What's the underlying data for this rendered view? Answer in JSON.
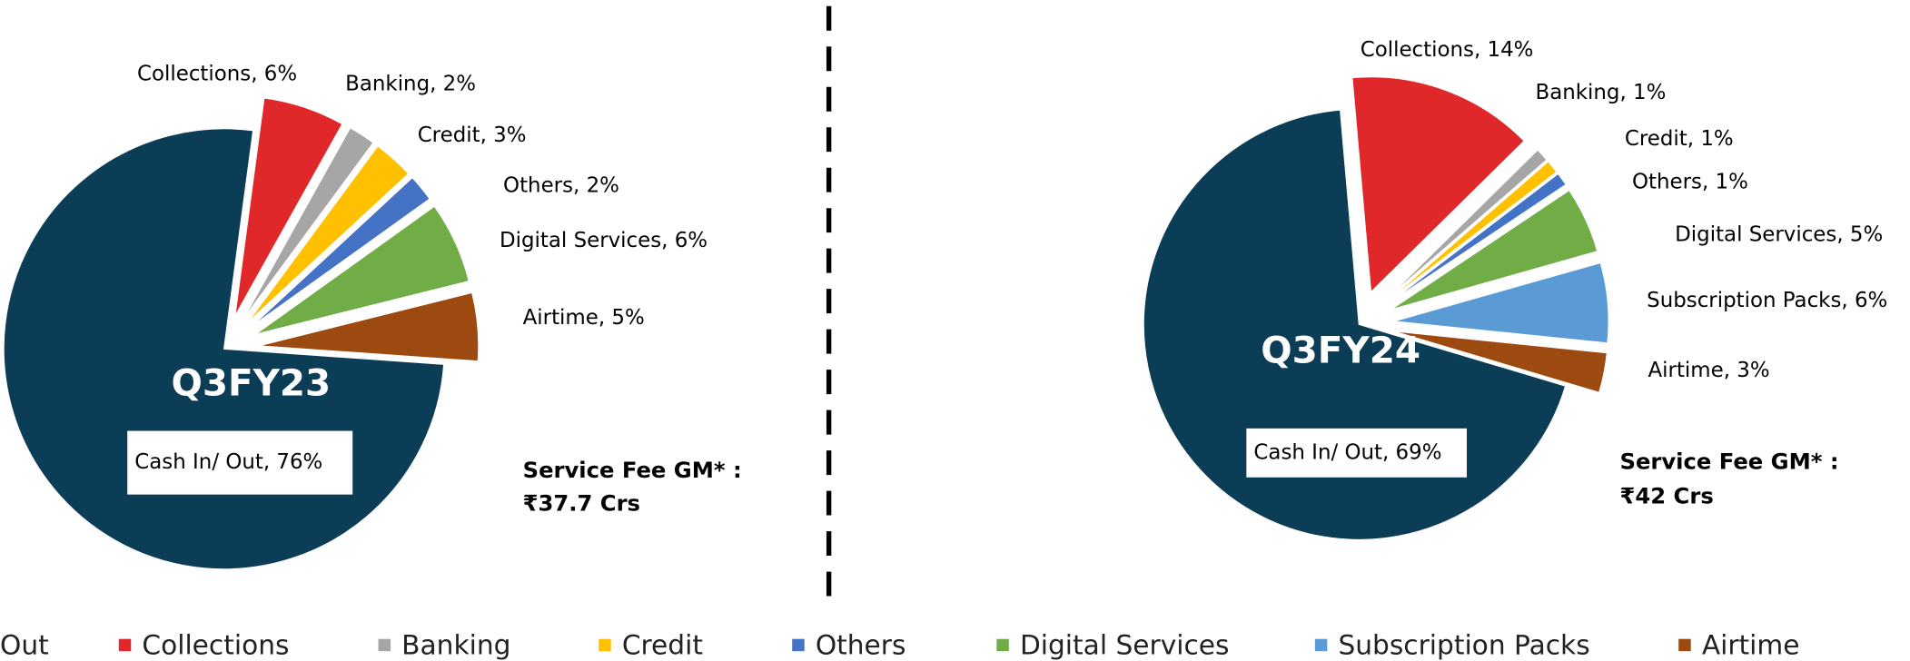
{
  "chart_data": [
    {
      "type": "pie",
      "title": "Q3FY23",
      "categories": [
        "Cash In/ Out",
        "Collections",
        "Banking",
        "Credit",
        "Others",
        "Digital Services",
        "Airtime"
      ],
      "values": [
        76,
        6,
        2,
        3,
        2,
        6,
        5
      ],
      "value_labels": [
        "Cash In/ Out, 76%",
        "Collections, 6%",
        "Banking, 2%",
        "Credit, 3%",
        "Others, 2%",
        "Digital Services, 6%",
        "Airtime, 5%"
      ],
      "colors": [
        "#0b3d56",
        "#e0282a",
        "#a6a6a6",
        "#ffc000",
        "#4472c4",
        "#70ad47",
        "#9c4a0f"
      ],
      "annotations": [
        "Service Fee GM* :",
        "₹37.7 Crs"
      ]
    },
    {
      "type": "pie",
      "title": "Q3FY24",
      "categories": [
        "Cash In/ Out",
        "Collections",
        "Banking",
        "Credit",
        "Others",
        "Digital Services",
        "Subscription Packs",
        "Airtime"
      ],
      "values": [
        69,
        14,
        1,
        1,
        1,
        5,
        6,
        3
      ],
      "value_labels": [
        "Cash In/ Out, 69%",
        "Collections, 14%",
        "Banking, 1%",
        "Credit, 1%",
        "Others, 1%",
        "Digital Services, 5%",
        "Subscription Packs, 6%",
        "Airtime, 3%"
      ],
      "colors": [
        "#0b3d56",
        "#e0282a",
        "#a6a6a6",
        "#ffc000",
        "#4472c4",
        "#70ad47",
        "#5b9bd5",
        "#9c4a0f"
      ],
      "annotations": [
        "Service Fee GM* :",
        "₹42 Crs"
      ]
    }
  ],
  "legend": [
    {
      "name": "Cash In/ Out",
      "color": "#0b3d56"
    },
    {
      "name": "Collections",
      "color": "#e0282a"
    },
    {
      "name": "Banking",
      "color": "#a6a6a6"
    },
    {
      "name": "Credit",
      "color": "#ffc000"
    },
    {
      "name": "Others",
      "color": "#4472c4"
    },
    {
      "name": "Digital Services",
      "color": "#70ad47"
    },
    {
      "name": "Subscription Packs",
      "color": "#5b9bd5"
    },
    {
      "name": "Airtime",
      "color": "#9c4a0f"
    }
  ]
}
